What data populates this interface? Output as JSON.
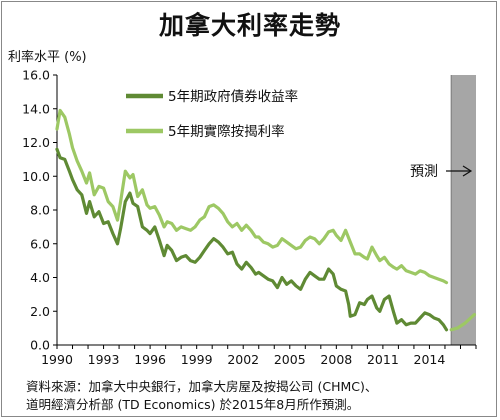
{
  "chart_data": {
    "type": "line",
    "title": "加拿大利率走勢",
    "ylabel": "利率水平 (%)",
    "xlabel": "",
    "ylim": [
      0,
      16
    ],
    "xlim": [
      1990,
      2017
    ],
    "grid": false,
    "legend_position": "top-left",
    "yticks": [
      "0.0",
      "2.0",
      "4.0",
      "6.0",
      "8.0",
      "10.0",
      "12.0",
      "14.0",
      "16.0"
    ],
    "xticks": [
      "1990",
      "1993",
      "1996",
      "1999",
      "2002",
      "2005",
      "2008",
      "2011",
      "2014"
    ],
    "forecast_region": {
      "start": 2015.4,
      "end": 2017,
      "label": "預測",
      "color": "#a6a6a6"
    },
    "series": [
      {
        "name": "5年期政府債券收益率",
        "color": "#5f8a34",
        "points": [
          [
            1990.0,
            11.6
          ],
          [
            1990.2,
            11.1
          ],
          [
            1990.5,
            11.0
          ],
          [
            1990.8,
            10.3
          ],
          [
            1991.0,
            9.8
          ],
          [
            1991.3,
            9.2
          ],
          [
            1991.6,
            8.9
          ],
          [
            1991.9,
            7.8
          ],
          [
            1992.1,
            8.5
          ],
          [
            1992.4,
            7.6
          ],
          [
            1992.7,
            7.9
          ],
          [
            1993.0,
            7.2
          ],
          [
            1993.3,
            7.3
          ],
          [
            1993.6,
            6.6
          ],
          [
            1993.9,
            6.0
          ],
          [
            1994.1,
            6.9
          ],
          [
            1994.4,
            8.5
          ],
          [
            1994.7,
            9.0
          ],
          [
            1994.9,
            8.4
          ],
          [
            1995.2,
            8.2
          ],
          [
            1995.5,
            7.0
          ],
          [
            1995.8,
            6.8
          ],
          [
            1996.0,
            6.6
          ],
          [
            1996.3,
            7.0
          ],
          [
            1996.6,
            6.2
          ],
          [
            1996.9,
            5.3
          ],
          [
            1997.1,
            5.9
          ],
          [
            1997.4,
            5.6
          ],
          [
            1997.7,
            5.0
          ],
          [
            1998.0,
            5.2
          ],
          [
            1998.3,
            5.3
          ],
          [
            1998.6,
            5.0
          ],
          [
            1998.9,
            4.9
          ],
          [
            1999.2,
            5.2
          ],
          [
            1999.5,
            5.6
          ],
          [
            1999.8,
            6.0
          ],
          [
            2000.1,
            6.3
          ],
          [
            2000.4,
            6.1
          ],
          [
            2000.7,
            5.8
          ],
          [
            2001.0,
            5.4
          ],
          [
            2001.3,
            5.5
          ],
          [
            2001.6,
            4.8
          ],
          [
            2001.9,
            4.5
          ],
          [
            2002.2,
            4.9
          ],
          [
            2002.5,
            4.6
          ],
          [
            2002.8,
            4.2
          ],
          [
            2003.0,
            4.3
          ],
          [
            2003.3,
            4.1
          ],
          [
            2003.6,
            3.9
          ],
          [
            2003.9,
            3.8
          ],
          [
            2004.2,
            3.4
          ],
          [
            2004.5,
            4.0
          ],
          [
            2004.8,
            3.6
          ],
          [
            2005.1,
            3.8
          ],
          [
            2005.4,
            3.5
          ],
          [
            2005.7,
            3.3
          ],
          [
            2006.0,
            3.9
          ],
          [
            2006.3,
            4.3
          ],
          [
            2006.6,
            4.1
          ],
          [
            2006.9,
            3.9
          ],
          [
            2007.2,
            3.9
          ],
          [
            2007.5,
            4.5
          ],
          [
            2007.8,
            4.2
          ],
          [
            2008.0,
            3.5
          ],
          [
            2008.3,
            3.3
          ],
          [
            2008.6,
            3.2
          ],
          [
            2008.8,
            2.4
          ],
          [
            2008.9,
            1.7
          ],
          [
            2009.2,
            1.8
          ],
          [
            2009.5,
            2.5
          ],
          [
            2009.8,
            2.4
          ],
          [
            2010.0,
            2.7
          ],
          [
            2010.3,
            2.9
          ],
          [
            2010.6,
            2.2
          ],
          [
            2010.8,
            2.0
          ],
          [
            2011.1,
            2.7
          ],
          [
            2011.4,
            2.9
          ],
          [
            2011.7,
            1.9
          ],
          [
            2011.9,
            1.3
          ],
          [
            2012.2,
            1.5
          ],
          [
            2012.5,
            1.2
          ],
          [
            2012.8,
            1.3
          ],
          [
            2013.1,
            1.3
          ],
          [
            2013.4,
            1.6
          ],
          [
            2013.7,
            1.9
          ],
          [
            2014.0,
            1.8
          ],
          [
            2014.3,
            1.6
          ],
          [
            2014.6,
            1.5
          ],
          [
            2014.9,
            1.2
          ],
          [
            2015.1,
            0.9
          ]
        ]
      },
      {
        "name": "5年期實際按揭利率",
        "color": "#9dc864",
        "points": [
          [
            1990.0,
            12.8
          ],
          [
            1990.2,
            13.9
          ],
          [
            1990.5,
            13.5
          ],
          [
            1990.8,
            12.5
          ],
          [
            1991.0,
            11.7
          ],
          [
            1991.3,
            10.9
          ],
          [
            1991.6,
            10.3
          ],
          [
            1991.9,
            9.6
          ],
          [
            1992.1,
            10.2
          ],
          [
            1992.4,
            8.9
          ],
          [
            1992.7,
            9.4
          ],
          [
            1993.0,
            9.3
          ],
          [
            1993.3,
            8.5
          ],
          [
            1993.6,
            8.2
          ],
          [
            1993.9,
            7.4
          ],
          [
            1994.1,
            8.5
          ],
          [
            1994.4,
            10.3
          ],
          [
            1994.7,
            9.9
          ],
          [
            1994.9,
            10.1
          ],
          [
            1995.2,
            8.8
          ],
          [
            1995.5,
            9.2
          ],
          [
            1995.8,
            8.3
          ],
          [
            1996.0,
            8.1
          ],
          [
            1996.3,
            8.2
          ],
          [
            1996.6,
            7.7
          ],
          [
            1996.9,
            7.0
          ],
          [
            1997.1,
            7.3
          ],
          [
            1997.4,
            7.2
          ],
          [
            1997.7,
            6.8
          ],
          [
            1998.0,
            7.0
          ],
          [
            1998.3,
            6.9
          ],
          [
            1998.6,
            6.8
          ],
          [
            1998.9,
            7.0
          ],
          [
            1999.2,
            7.4
          ],
          [
            1999.5,
            7.6
          ],
          [
            1999.8,
            8.2
          ],
          [
            2000.1,
            8.3
          ],
          [
            2000.4,
            8.1
          ],
          [
            2000.7,
            7.8
          ],
          [
            2001.0,
            7.3
          ],
          [
            2001.3,
            7.0
          ],
          [
            2001.6,
            7.2
          ],
          [
            2001.9,
            6.8
          ],
          [
            2002.2,
            7.1
          ],
          [
            2002.5,
            6.8
          ],
          [
            2002.8,
            6.4
          ],
          [
            2003.0,
            6.4
          ],
          [
            2003.3,
            6.1
          ],
          [
            2003.6,
            6.0
          ],
          [
            2003.9,
            5.8
          ],
          [
            2004.2,
            5.9
          ],
          [
            2004.5,
            6.3
          ],
          [
            2004.8,
            6.1
          ],
          [
            2005.1,
            5.9
          ],
          [
            2005.4,
            5.7
          ],
          [
            2005.7,
            5.8
          ],
          [
            2006.0,
            6.2
          ],
          [
            2006.3,
            6.4
          ],
          [
            2006.6,
            6.3
          ],
          [
            2006.9,
            6.0
          ],
          [
            2007.2,
            6.3
          ],
          [
            2007.5,
            6.7
          ],
          [
            2007.8,
            6.8
          ],
          [
            2008.0,
            6.5
          ],
          [
            2008.3,
            6.2
          ],
          [
            2008.6,
            6.8
          ],
          [
            2008.9,
            6.1
          ],
          [
            2009.2,
            5.4
          ],
          [
            2009.5,
            5.4
          ],
          [
            2009.8,
            5.2
          ],
          [
            2010.0,
            5.1
          ],
          [
            2010.3,
            5.8
          ],
          [
            2010.6,
            5.3
          ],
          [
            2010.8,
            5.0
          ],
          [
            2011.1,
            5.2
          ],
          [
            2011.4,
            4.8
          ],
          [
            2011.7,
            4.6
          ],
          [
            2011.9,
            4.5
          ],
          [
            2012.2,
            4.7
          ],
          [
            2012.5,
            4.4
          ],
          [
            2012.8,
            4.3
          ],
          [
            2013.1,
            4.2
          ],
          [
            2013.4,
            4.4
          ],
          [
            2013.7,
            4.3
          ],
          [
            2014.0,
            4.1
          ],
          [
            2014.3,
            4.0
          ],
          [
            2014.6,
            3.9
          ],
          [
            2014.9,
            3.8
          ],
          [
            2015.1,
            3.7
          ]
        ]
      }
    ],
    "forecast_series": {
      "name": "5年期政府債券收益率",
      "color": "#9dc864",
      "points": [
        [
          2015.4,
          0.9
        ],
        [
          2015.8,
          1.0
        ],
        [
          2016.3,
          1.3
        ],
        [
          2016.9,
          1.8
        ]
      ]
    }
  },
  "source_note": {
    "line1": "資料來源：加拿大中央銀行，加拿大房屋及按揭公司 (CHMC)、",
    "line2": "道明經濟分析部 (TD Economics) 於2015年8月所作預測。"
  }
}
